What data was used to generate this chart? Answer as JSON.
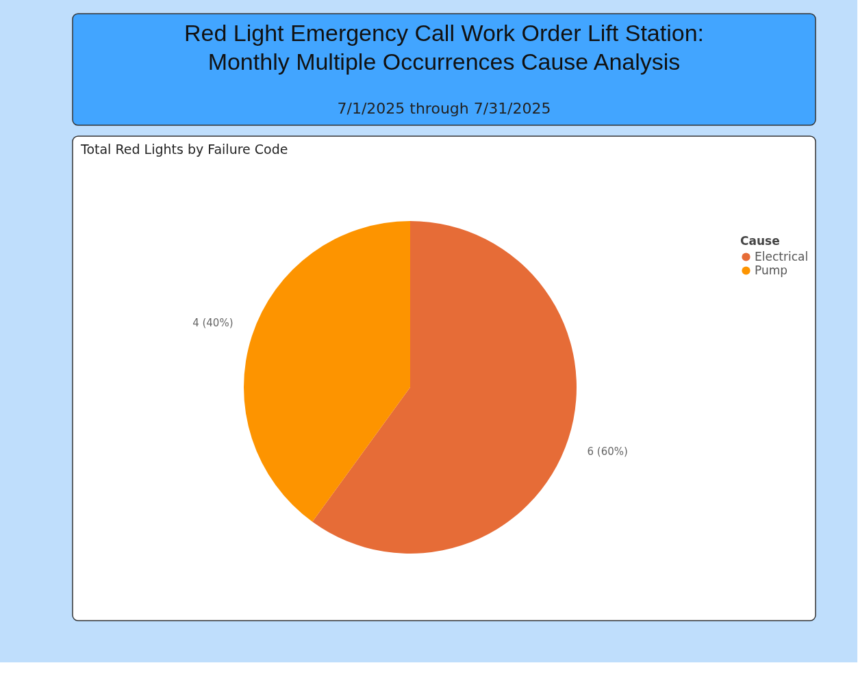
{
  "chart_data": {
    "type": "pie",
    "title": "Red Light Emergency Call Work Order Lift Station: Monthly Multiple Occurrences Cause Analysis",
    "subtitle": "7/1/2025 through 7/31/2025",
    "annotations": [
      "Total Red Lights by Failure Code"
    ],
    "legend_title": "Cause",
    "legend": "right",
    "categories": [
      "Electrical",
      "Pump"
    ],
    "values": [
      6,
      4
    ],
    "colors": [
      "#e66c37",
      "#fd9400"
    ],
    "value_labels": [
      "6 (60%)",
      "4 (40%)"
    ]
  }
}
